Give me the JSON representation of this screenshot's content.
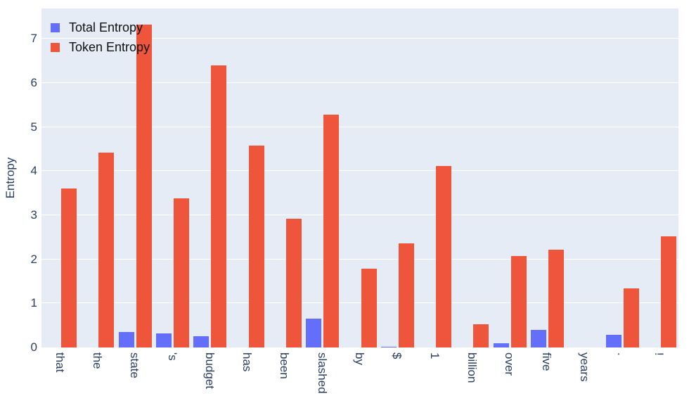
{
  "chart_data": {
    "type": "bar",
    "title": "",
    "xlabel": "",
    "ylabel": "Entropy",
    "ylim": [
      0,
      7.69
    ],
    "yticks": [
      0,
      1,
      2,
      3,
      4,
      5,
      6,
      7
    ],
    "grid": true,
    "legend_position": "top-left-inside",
    "plot_bg_color": "#E5ECF6",
    "grid_color": "#FFFFFF",
    "axis_text_color": "#2a3f5f",
    "categories": [
      "that",
      "the",
      "state",
      "'s",
      "budget",
      "has",
      "been",
      "slashed",
      "by",
      "$",
      "1",
      "billion",
      "over",
      "five",
      "years",
      ".",
      "!"
    ],
    "series": [
      {
        "name": "Total Entropy",
        "color": "#636EFA",
        "values": [
          0,
          0,
          0.35,
          0.32,
          0.26,
          0,
          0,
          0.66,
          0,
          0.02,
          0,
          0,
          0.1,
          0.4,
          0,
          0.28,
          0
        ]
      },
      {
        "name": "Token Entropy",
        "color": "#EF553B",
        "values": [
          3.6,
          4.42,
          7.32,
          3.38,
          6.4,
          4.58,
          2.92,
          5.28,
          1.78,
          2.36,
          4.12,
          0.52,
          2.08,
          2.22,
          0,
          1.34,
          2.52
        ]
      }
    ]
  }
}
